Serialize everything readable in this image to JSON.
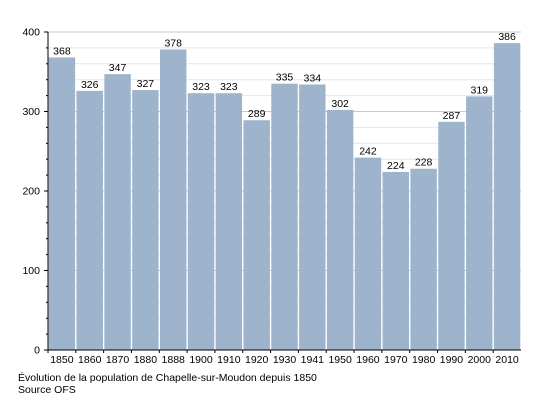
{
  "chart_data": {
    "type": "bar",
    "categories": [
      "1850",
      "1860",
      "1870",
      "1880",
      "1888",
      "1900",
      "1910",
      "1920",
      "1930",
      "1941",
      "1950",
      "1960",
      "1970",
      "1980",
      "1990",
      "2000",
      "2010"
    ],
    "values": [
      368,
      326,
      347,
      327,
      378,
      323,
      323,
      289,
      335,
      334,
      302,
      242,
      224,
      228,
      287,
      319,
      386
    ],
    "ylim": [
      0,
      400
    ],
    "yticks": [
      0,
      100,
      200,
      300,
      400
    ],
    "grid": true,
    "bar_color": "#9eb4cc",
    "caption": [
      "Évolution de la population de Chapelle-sur-Moudon depuis 1850",
      "Source OFS"
    ]
  }
}
